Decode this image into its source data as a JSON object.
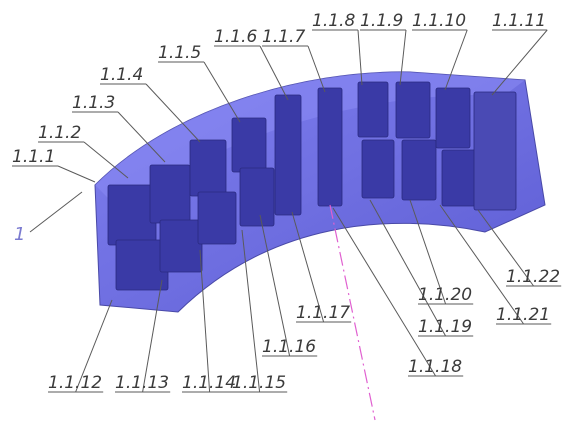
{
  "drawing": {
    "part_label": "1",
    "callouts_top": [
      "1.1.1",
      "1.1.2",
      "1.1.3",
      "1.1.4",
      "1.1.5",
      "1.1.6",
      "1.1.7",
      "1.1.8",
      "1.1.9",
      "1.1.10",
      "1.1.11"
    ],
    "callouts_bottom": [
      "1.1.12",
      "1.1.13",
      "1.1.14",
      "1.1.15",
      "1.1.16",
      "1.1.17",
      "1.1.18",
      "1.1.19",
      "1.1.20",
      "1.1.21",
      "1.1.22"
    ],
    "colors": {
      "body": "#6464e6",
      "body_dark": "#4848c8",
      "slot": "#3a3aa8",
      "axis": "#e060d0"
    }
  }
}
